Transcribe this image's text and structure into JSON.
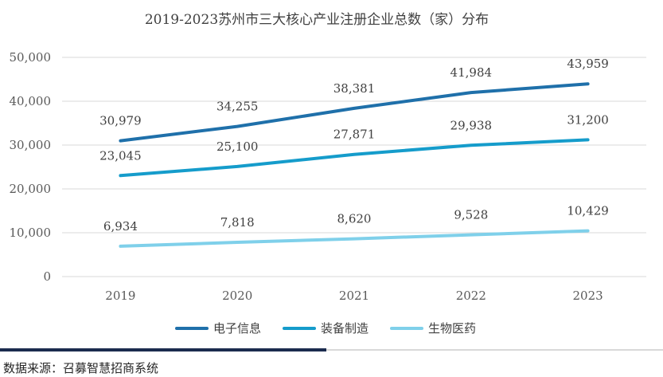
{
  "chart_data": {
    "type": "line",
    "title": "2019-2023苏州市三大核心产业注册企业总数（家）分布",
    "categories": [
      "2019",
      "2020",
      "2021",
      "2022",
      "2023"
    ],
    "ylim": [
      0,
      50000
    ],
    "yticks": [
      0,
      10000,
      20000,
      30000,
      40000,
      50000
    ],
    "ytick_labels": [
      "0",
      "10,000",
      "20,000",
      "30,000",
      "40,000",
      "50,000"
    ],
    "grid": true,
    "legend_position": "bottom",
    "series": [
      {
        "name": "电子信息",
        "values": [
          30979,
          34255,
          38381,
          41984,
          43959
        ],
        "labels": [
          "30,979",
          "34,255",
          "38,381",
          "41,984",
          "43,959"
        ],
        "color": "#1F70AA"
      },
      {
        "name": "装备制造",
        "values": [
          23045,
          25100,
          27871,
          29938,
          31200
        ],
        "labels": [
          "23,045",
          "25,100",
          "27,871",
          "29,938",
          "31,200"
        ],
        "color": "#159CCB"
      },
      {
        "name": "生物医药",
        "values": [
          6934,
          7818,
          8620,
          9528,
          10429
        ],
        "labels": [
          "6,934",
          "7,818",
          "8,620",
          "9,528",
          "10,429"
        ],
        "color": "#7FD0EA"
      }
    ]
  },
  "footer": {
    "source": "数据来源：召募智慧招商系统",
    "rule_dark_color": "#1B2B4E",
    "rule_light_color": "#D9D9D9"
  }
}
